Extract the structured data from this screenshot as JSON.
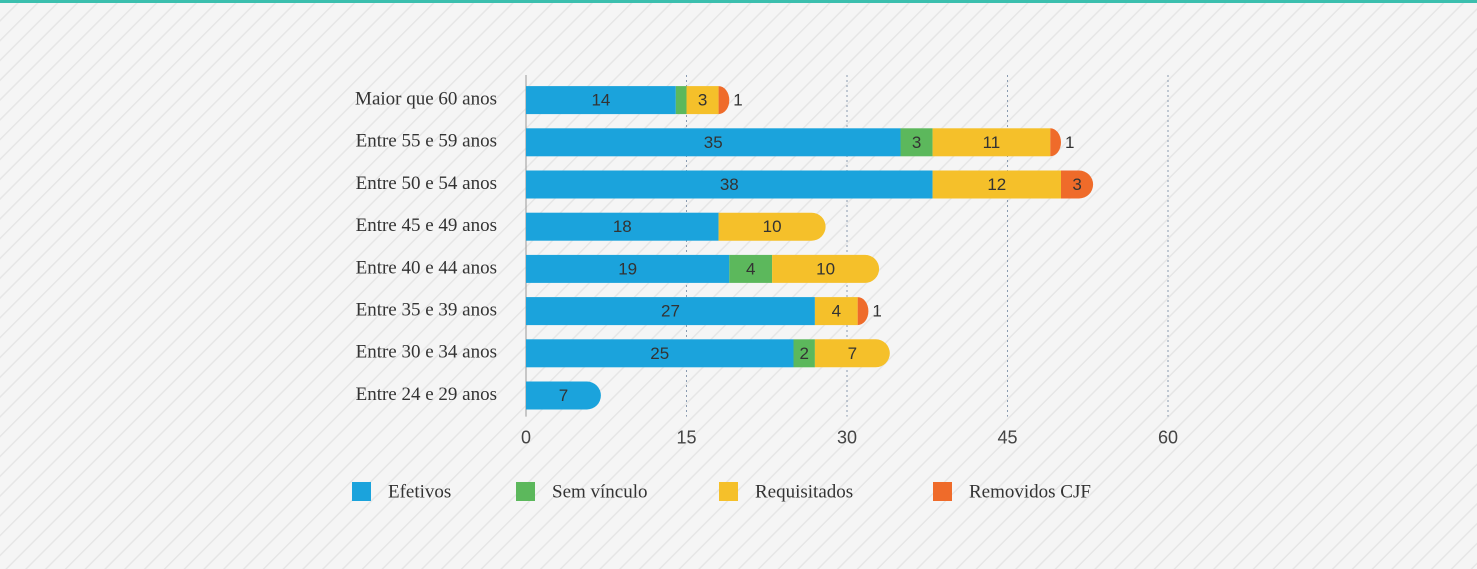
{
  "chart_data": {
    "type": "bar",
    "orientation": "horizontal",
    "stacked": true,
    "categories": [
      "Maior que 60 anos",
      "Entre 55 e 59 anos",
      "Entre 50 e 54 anos",
      "Entre 45 e 49 anos",
      "Entre 40 e 44 anos",
      "Entre 35 e 39 anos",
      "Entre 30 e 34 anos",
      "Entre 24 e 29 anos"
    ],
    "series": [
      {
        "name": "Efetivos",
        "color": "#1ba3dc",
        "values": [
          14,
          35,
          38,
          18,
          19,
          27,
          25,
          7
        ]
      },
      {
        "name": "Sem vínculo",
        "color": "#5cb85c",
        "values": [
          1,
          3,
          null,
          null,
          4,
          null,
          2,
          null
        ]
      },
      {
        "name": "Requisitados",
        "color": "#f5c02a",
        "values": [
          3,
          11,
          12,
          10,
          10,
          4,
          7,
          null
        ]
      },
      {
        "name": "Removidos CJF",
        "color": "#ef6b2a",
        "values": [
          1,
          1,
          3,
          null,
          null,
          1,
          null,
          null
        ]
      }
    ],
    "xlim": [
      0,
      60
    ],
    "xticks": [
      0,
      15,
      30,
      45,
      60
    ],
    "grid": true,
    "legend": "bottom"
  }
}
